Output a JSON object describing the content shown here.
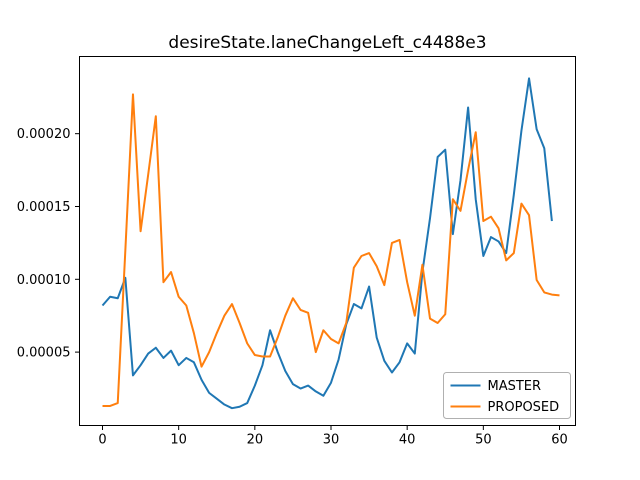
{
  "chart_data": {
    "type": "line",
    "title": "desireState.laneChangeLeft_c4488e3",
    "xlabel": "",
    "ylabel": "",
    "grid": false,
    "xlim": [
      -3.02,
      62.1
    ],
    "ylim": [
      -4e-07,
      0.000253
    ],
    "xticks": {
      "values": [
        0,
        10,
        20,
        30,
        40,
        50,
        60
      ],
      "labels": [
        "0",
        "10",
        "20",
        "30",
        "40",
        "50",
        "60"
      ]
    },
    "yticks": {
      "values": [
        5e-05,
        0.0001,
        0.00015,
        0.0002
      ],
      "labels": [
        "0.00005",
        "0.00010",
        "0.00015",
        "0.00020"
      ]
    },
    "legend": {
      "position": "lower right",
      "entries": [
        "MASTER",
        "PROPOSED"
      ]
    },
    "series": [
      {
        "name": "MASTER",
        "color": "#1f77b4",
        "x": [
          0,
          1,
          2,
          3,
          4,
          5,
          6,
          7,
          8,
          9,
          10,
          11,
          12,
          13,
          14,
          15,
          16,
          17,
          18,
          19,
          20,
          21,
          22,
          23,
          24,
          25,
          26,
          27,
          28,
          29,
          30,
          31,
          32,
          33,
          34,
          35,
          36,
          37,
          38,
          39,
          40,
          41,
          42,
          43,
          44,
          45,
          46,
          47,
          48,
          49,
          50,
          51,
          52,
          53,
          54,
          55,
          56,
          57,
          58,
          59
        ],
        "values": [
          8.2e-05,
          8.8e-05,
          8.7e-05,
          0.000101,
          3.4e-05,
          4.1e-05,
          4.9e-05,
          5.3e-05,
          4.6e-05,
          5.1e-05,
          4.1e-05,
          4.6e-05,
          4.3e-05,
          3.1e-05,
          2.2e-05,
          1.8e-05,
          1.4e-05,
          1.15e-05,
          1.25e-05,
          1.5e-05,
          2.7e-05,
          4.1e-05,
          6.5e-05,
          5e-05,
          3.7e-05,
          2.8e-05,
          2.5e-05,
          2.7e-05,
          2.3e-05,
          2e-05,
          2.9e-05,
          4.5e-05,
          6.9e-05,
          8.3e-05,
          8e-05,
          9.5e-05,
          6e-05,
          4.4e-05,
          3.6e-05,
          4.3e-05,
          5.6e-05,
          4.9e-05,
          0.000105,
          0.000142,
          0.000184,
          0.000189,
          0.000131,
          0.000168,
          0.000218,
          0.000155,
          0.000116,
          0.000129,
          0.000126,
          0.000118,
          0.000158,
          0.000202,
          0.000238,
          0.000203,
          0.00019,
          0.00014
        ]
      },
      {
        "name": "PROPOSED",
        "color": "#ff7f0e",
        "x": [
          0,
          1,
          2,
          3,
          4,
          5,
          6,
          7,
          8,
          9,
          10,
          11,
          12,
          13,
          14,
          15,
          16,
          17,
          18,
          19,
          20,
          21,
          22,
          23,
          24,
          25,
          26,
          27,
          28,
          29,
          30,
          31,
          32,
          33,
          34,
          35,
          36,
          37,
          38,
          39,
          40,
          41,
          42,
          43,
          44,
          45,
          46,
          47,
          48,
          49,
          50,
          51,
          52,
          53,
          54,
          55,
          56,
          57,
          58,
          59,
          60
        ],
        "values": [
          1.3e-05,
          1.3e-05,
          1.5e-05,
          0.00012,
          0.000227,
          0.000133,
          0.000172,
          0.000212,
          9.8e-05,
          0.000105,
          8.8e-05,
          8.2e-05,
          6.3e-05,
          4e-05,
          5e-05,
          6.3e-05,
          7.5e-05,
          8.3e-05,
          7e-05,
          5.6e-05,
          4.8e-05,
          4.7e-05,
          4.7e-05,
          6e-05,
          7.5e-05,
          8.7e-05,
          7.9e-05,
          7.7e-05,
          5e-05,
          6.5e-05,
          5.9e-05,
          5.6e-05,
          7e-05,
          0.000108,
          0.000116,
          0.000118,
          0.000109,
          9.6e-05,
          0.000125,
          0.000127,
          9.8e-05,
          7.5e-05,
          0.00011,
          7.3e-05,
          7e-05,
          7.6e-05,
          0.000155,
          0.000147,
          0.000175,
          0.000201,
          0.00014,
          0.000143,
          0.000135,
          0.000113,
          0.000118,
          0.000152,
          0.000144,
          9.95e-05,
          9.1e-05,
          8.95e-05,
          8.9e-05
        ]
      }
    ]
  },
  "figure": {
    "background": "#ffffff",
    "spine_color": "#000000",
    "tick_color": "#000000",
    "legend_border_color": "#b0b0b0",
    "legend_background": "#ffffff"
  }
}
